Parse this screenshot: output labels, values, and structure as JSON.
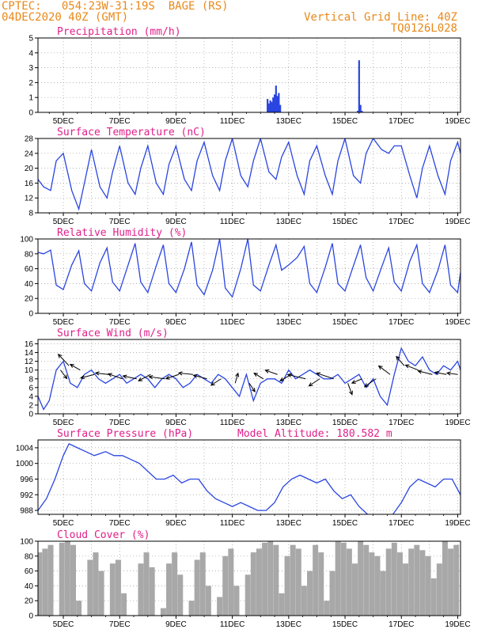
{
  "header": {
    "line1_left": "CPTEC:   054:23W-31:19S  BAGE (RS)",
    "line2_left": "04DEC2020 40Z (GMT)",
    "line1_right": "Vertical Grid Line: 40Z",
    "line2_right": "TQ0126L028"
  },
  "colors": {
    "header": "#e8891a",
    "panel_title": "#e0208a",
    "series": "#2a45e0",
    "cloud": "#a8a8a8",
    "wind_arrow": "#000000",
    "grid": "#9a9a9a"
  },
  "x_axis": {
    "tick_labels": [
      "5DEC",
      "7DEC",
      "9DEC",
      "11DEC",
      "13DEC",
      "15DEC",
      "17DEC",
      "19DEC"
    ],
    "tick_days": [
      5,
      7,
      9,
      11,
      13,
      15,
      17,
      19
    ],
    "range_days": [
      4.1,
      19.1
    ]
  },
  "panels": [
    {
      "id": "precip",
      "title": "Precipitation (mm/h)",
      "type": "bar",
      "ylim": [
        0,
        5
      ],
      "yticks": [
        0,
        1,
        2,
        3,
        4,
        5
      ],
      "x_days": [
        12.25,
        12.3,
        12.35,
        12.4,
        12.45,
        12.5,
        12.55,
        12.6,
        12.65,
        12.7,
        15.45,
        15.5,
        15.55,
        15.6
      ],
      "values": [
        0.9,
        0.6,
        0.8,
        0.7,
        1.0,
        1.2,
        1.8,
        1.1,
        1.3,
        0.5,
        0.1,
        3.5,
        0.5,
        0.1
      ]
    },
    {
      "id": "temp",
      "title": "Surface Temperature (nC)",
      "type": "line",
      "ylim": [
        8,
        28
      ],
      "yticks": [
        8,
        12,
        16,
        20,
        24,
        28
      ],
      "x_days": [
        4.1,
        4.3,
        4.55,
        4.75,
        5.0,
        5.3,
        5.55,
        5.75,
        6.0,
        6.3,
        6.55,
        6.75,
        7.0,
        7.3,
        7.55,
        7.75,
        8.0,
        8.3,
        8.55,
        8.75,
        9.0,
        9.3,
        9.55,
        9.75,
        10.0,
        10.3,
        10.55,
        10.75,
        11.0,
        11.3,
        11.55,
        11.75,
        12.0,
        12.3,
        12.55,
        12.75,
        13.0,
        13.3,
        13.55,
        13.75,
        14.0,
        14.3,
        14.55,
        14.75,
        15.0,
        15.3,
        15.55,
        15.75,
        16.0,
        16.3,
        16.55,
        16.75,
        17.0,
        17.3,
        17.55,
        17.75,
        18.0,
        18.3,
        18.55,
        18.75,
        19.0,
        19.1
      ],
      "values": [
        17,
        15,
        14,
        22,
        24,
        14,
        9,
        16,
        25,
        15,
        12,
        19,
        26,
        16,
        13,
        20,
        26,
        16,
        13,
        21,
        26,
        17,
        14,
        22,
        27,
        18,
        14,
        22,
        28,
        18,
        15,
        22,
        28,
        19,
        17,
        23,
        27,
        18,
        13,
        22,
        26,
        18,
        13,
        22,
        28,
        18,
        16,
        24,
        28,
        25,
        24,
        26,
        26,
        18,
        12,
        20,
        26,
        18,
        13,
        22,
        27,
        24
      ]
    },
    {
      "id": "rh",
      "title": "Relative Humidity (%)",
      "type": "line",
      "ylim": [
        0,
        100
      ],
      "yticks": [
        0,
        20,
        40,
        60,
        80,
        100
      ],
      "x_days": [
        4.1,
        4.3,
        4.55,
        4.75,
        5.0,
        5.3,
        5.55,
        5.75,
        6.0,
        6.3,
        6.55,
        6.75,
        7.0,
        7.3,
        7.55,
        7.75,
        8.0,
        8.3,
        8.55,
        8.75,
        9.0,
        9.3,
        9.55,
        9.75,
        10.0,
        10.3,
        10.55,
        10.75,
        11.0,
        11.3,
        11.55,
        11.75,
        12.0,
        12.3,
        12.55,
        12.75,
        13.0,
        13.3,
        13.55,
        13.75,
        14.0,
        14.3,
        14.55,
        14.75,
        15.0,
        15.3,
        15.55,
        15.75,
        16.0,
        16.3,
        16.55,
        16.75,
        17.0,
        17.3,
        17.55,
        17.75,
        18.0,
        18.3,
        18.55,
        18.75,
        19.0,
        19.1
      ],
      "values": [
        82,
        80,
        85,
        38,
        32,
        65,
        84,
        40,
        30,
        68,
        88,
        42,
        30,
        65,
        94,
        42,
        28,
        64,
        92,
        40,
        28,
        60,
        96,
        38,
        25,
        58,
        100,
        34,
        22,
        60,
        100,
        38,
        30,
        65,
        92,
        58,
        65,
        75,
        90,
        40,
        28,
        62,
        94,
        40,
        30,
        64,
        92,
        48,
        30,
        62,
        88,
        42,
        30,
        70,
        92,
        40,
        28,
        58,
        92,
        38,
        28,
        55
      ]
    },
    {
      "id": "wind",
      "title": "Surface Wind (m/s)",
      "type": "line+vectors",
      "ylim": [
        0,
        17
      ],
      "yticks": [
        0,
        2,
        4,
        6,
        8,
        10,
        12,
        14,
        16
      ],
      "x_days": [
        4.1,
        4.3,
        4.5,
        4.75,
        5.0,
        5.25,
        5.5,
        5.75,
        6.0,
        6.25,
        6.5,
        6.75,
        7.0,
        7.25,
        7.5,
        7.75,
        8.0,
        8.25,
        8.5,
        8.75,
        9.0,
        9.25,
        9.5,
        9.75,
        10.0,
        10.25,
        10.5,
        10.75,
        11.0,
        11.25,
        11.5,
        11.75,
        12.0,
        12.25,
        12.5,
        12.75,
        13.0,
        13.25,
        13.5,
        13.75,
        14.0,
        14.25,
        14.5,
        14.75,
        15.0,
        15.25,
        15.5,
        15.75,
        16.0,
        16.25,
        16.5,
        16.75,
        17.0,
        17.25,
        17.5,
        17.75,
        18.0,
        18.25,
        18.5,
        18.75,
        19.0,
        19.1
      ],
      "values": [
        4,
        1,
        3,
        10,
        12,
        7,
        6,
        9,
        10,
        8,
        7,
        8,
        9,
        7,
        8,
        9,
        8,
        6,
        8,
        9,
        8,
        6,
        7,
        9,
        8,
        7,
        9,
        8,
        6,
        4,
        9,
        3,
        7,
        8,
        8,
        7,
        10,
        8,
        9,
        10,
        9,
        8,
        8,
        9,
        7,
        8,
        9,
        6,
        8,
        4,
        2,
        9,
        15,
        12,
        11,
        13,
        10,
        9,
        11,
        10,
        12,
        10
      ],
      "vectors": [
        {
          "day": 4.9,
          "val": 10,
          "u": 0.9,
          "v": -1.2
        },
        {
          "day": 5.2,
          "val": 11,
          "u": -1.5,
          "v": 1.6
        },
        {
          "day": 5.6,
          "val": 10,
          "u": -1.4,
          "v": 0.8
        },
        {
          "day": 6.1,
          "val": 9,
          "u": -1.9,
          "v": -0.5
        },
        {
          "day": 6.6,
          "val": 9,
          "u": -1.8,
          "v": 0.2
        },
        {
          "day": 7.1,
          "val": 8,
          "u": -2.0,
          "v": 0.7
        },
        {
          "day": 7.6,
          "val": 8,
          "u": -1.9,
          "v": 0.4
        },
        {
          "day": 8.1,
          "val": 9,
          "u": -1.7,
          "v": -0.9
        },
        {
          "day": 8.6,
          "val": 8,
          "u": -2.2,
          "v": 0.3
        },
        {
          "day": 9.1,
          "val": 9,
          "u": -1.8,
          "v": -0.6
        },
        {
          "day": 9.6,
          "val": 9,
          "u": -2.0,
          "v": 0.2
        },
        {
          "day": 10.1,
          "val": 8,
          "u": -1.9,
          "v": 0.5
        },
        {
          "day": 10.6,
          "val": 8,
          "u": -1.4,
          "v": -0.9
        },
        {
          "day": 11.1,
          "val": 7,
          "u": 0.4,
          "v": 1.4
        },
        {
          "day": 11.6,
          "val": 7,
          "u": 0.8,
          "v": -1.2
        },
        {
          "day": 12.1,
          "val": 8,
          "u": -1.3,
          "v": 0.8
        },
        {
          "day": 12.6,
          "val": 9,
          "u": -1.7,
          "v": 0.6
        },
        {
          "day": 13.1,
          "val": 9,
          "u": -1.6,
          "v": -0.9
        },
        {
          "day": 13.6,
          "val": 8,
          "u": -2.5,
          "v": 0.6
        },
        {
          "day": 14.1,
          "val": 8,
          "u": -1.5,
          "v": -1.0
        },
        {
          "day": 14.6,
          "val": 8,
          "u": -2.4,
          "v": 0.8
        },
        {
          "day": 15.1,
          "val": 7,
          "u": 0.6,
          "v": -1.6
        },
        {
          "day": 15.6,
          "val": 8,
          "u": -1.4,
          "v": -0.6
        },
        {
          "day": 16.1,
          "val": 8,
          "u": -1.6,
          "v": -1.1
        },
        {
          "day": 16.6,
          "val": 9,
          "u": -1.6,
          "v": 1.2
        },
        {
          "day": 17.1,
          "val": 11,
          "u": -1.1,
          "v": 1.3
        },
        {
          "day": 17.6,
          "val": 10,
          "u": -1.8,
          "v": 0.7
        },
        {
          "day": 18.1,
          "val": 9,
          "u": -2.0,
          "v": 0.5
        },
        {
          "day": 18.6,
          "val": 9,
          "u": -1.6,
          "v": 0.3
        },
        {
          "day": 19.0,
          "val": 9,
          "u": -1.5,
          "v": 0.2
        }
      ]
    },
    {
      "id": "pressure",
      "title": "Surface Pressure (hPa)",
      "subtitle": "Model Altitude: 180.582 m",
      "type": "line",
      "ylim": [
        987,
        1006
      ],
      "yticks": [
        988,
        992,
        996,
        1000,
        1004
      ],
      "x_days": [
        4.1,
        4.4,
        4.7,
        5.0,
        5.2,
        5.5,
        5.8,
        6.1,
        6.5,
        6.8,
        7.1,
        7.4,
        7.7,
        8.0,
        8.3,
        8.6,
        8.9,
        9.2,
        9.5,
        9.8,
        10.1,
        10.4,
        10.7,
        11.0,
        11.3,
        11.6,
        11.9,
        12.2,
        12.5,
        12.8,
        13.1,
        13.4,
        13.7,
        14.0,
        14.3,
        14.6,
        14.9,
        15.2,
        15.5,
        15.8,
        16.1,
        16.4,
        16.7,
        17.0,
        17.3,
        17.6,
        17.9,
        18.2,
        18.5,
        18.8,
        19.1
      ],
      "values": [
        988,
        991,
        996,
        1002,
        1005,
        1004,
        1003,
        1002,
        1003,
        1002,
        1002,
        1001,
        1000,
        998,
        996,
        996,
        997,
        995,
        996,
        996,
        993,
        991,
        990,
        989,
        990,
        989,
        988,
        988,
        990,
        994,
        996,
        997,
        996,
        995,
        996,
        993,
        991,
        992,
        989,
        987,
        985,
        986,
        987,
        990,
        994,
        996,
        995,
        994,
        996,
        996,
        992
      ]
    },
    {
      "id": "cloud",
      "title": "Cloud Cover (%)",
      "type": "bar",
      "ylim": [
        0,
        100
      ],
      "yticks": [
        0,
        20,
        40,
        60,
        80,
        100
      ],
      "x_days": [
        4.15,
        4.35,
        4.55,
        4.75,
        4.95,
        5.15,
        5.35,
        5.55,
        5.75,
        5.95,
        6.15,
        6.35,
        6.55,
        6.75,
        6.95,
        7.15,
        7.35,
        7.55,
        7.75,
        7.95,
        8.15,
        8.35,
        8.55,
        8.75,
        8.95,
        9.15,
        9.35,
        9.55,
        9.75,
        9.95,
        10.15,
        10.35,
        10.55,
        10.75,
        10.95,
        11.15,
        11.35,
        11.55,
        11.75,
        11.95,
        12.15,
        12.35,
        12.55,
        12.75,
        12.95,
        13.15,
        13.35,
        13.55,
        13.75,
        13.95,
        14.15,
        14.35,
        14.55,
        14.75,
        14.95,
        15.15,
        15.35,
        15.55,
        15.75,
        15.95,
        16.15,
        16.35,
        16.55,
        16.75,
        16.95,
        17.15,
        17.35,
        17.55,
        17.75,
        17.95,
        18.15,
        18.35,
        18.55,
        18.75,
        18.95
      ],
      "values": [
        85,
        90,
        95,
        0,
        98,
        100,
        95,
        20,
        0,
        75,
        85,
        60,
        0,
        70,
        75,
        30,
        0,
        0,
        70,
        85,
        65,
        0,
        10,
        70,
        85,
        55,
        0,
        20,
        75,
        85,
        40,
        0,
        25,
        80,
        90,
        40,
        0,
        55,
        85,
        90,
        98,
        100,
        95,
        30,
        80,
        95,
        90,
        40,
        60,
        95,
        85,
        20,
        60,
        100,
        98,
        90,
        70,
        100,
        95,
        85,
        80,
        60,
        90,
        98,
        85,
        70,
        90,
        95,
        88,
        80,
        50,
        70,
        100,
        90,
        95
      ]
    }
  ]
}
